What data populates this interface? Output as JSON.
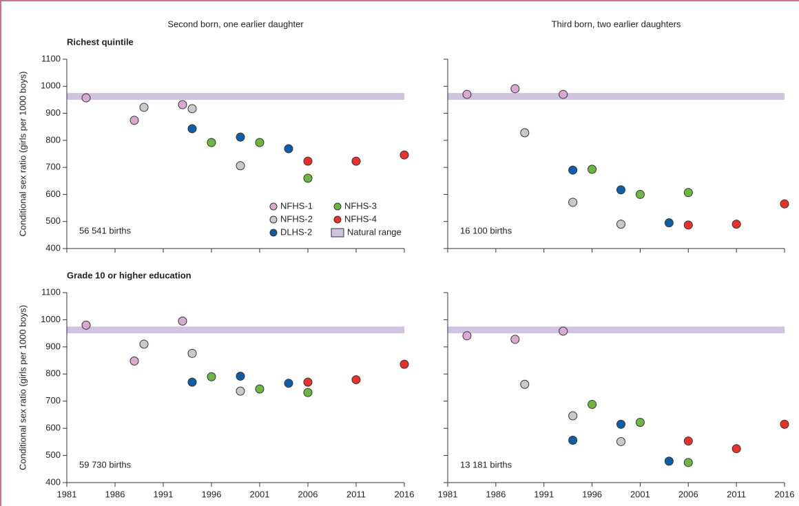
{
  "chart_data": [
    {
      "type": "scatter",
      "title": "Second born, one earlier daughter",
      "subtitle": "Richest quintile",
      "ylabel": "Conditional sex ratio (girls per 1000 boys)",
      "annotation": "56 541 births",
      "legend": "center-right",
      "xlim": [
        1981,
        2016
      ],
      "ylim": [
        400,
        1100
      ],
      "xticks": [
        1981,
        1986,
        1991,
        1996,
        2001,
        2006,
        2011,
        2016
      ],
      "yticks": [
        400,
        500,
        600,
        700,
        800,
        900,
        1000,
        1100
      ],
      "natural_range": {
        "name": "Natural range",
        "color": "#cfc3df",
        "values": [
          950,
          975
        ]
      },
      "series": [
        {
          "name": "NFHS-1",
          "color": "#d9a9d1",
          "x": [
            1983,
            1988,
            1993
          ],
          "values": [
            957,
            874,
            932
          ]
        },
        {
          "name": "NFHS-2",
          "color": "#c8c9cb",
          "x": [
            1989,
            1994,
            1999
          ],
          "values": [
            922,
            917,
            706
          ]
        },
        {
          "name": "DLHS-2",
          "color": "#0f5ea8",
          "x": [
            1994,
            1999,
            2004
          ],
          "values": [
            843,
            812,
            769
          ]
        },
        {
          "name": "NFHS-3",
          "color": "#6ab842",
          "x": [
            1996,
            2001,
            2006
          ],
          "values": [
            792,
            792,
            660
          ]
        },
        {
          "name": "NFHS-4",
          "color": "#e8312a",
          "x": [
            2006,
            2011,
            2016
          ],
          "values": [
            723,
            723,
            746
          ]
        }
      ]
    },
    {
      "type": "scatter",
      "title": "Third born, two earlier daughters",
      "annotation": "16 100 births",
      "xlim": [
        1981,
        2016
      ],
      "ylim": [
        400,
        1100
      ],
      "xticks": [
        1981,
        1986,
        1991,
        1996,
        2001,
        2006,
        2011,
        2016
      ],
      "yticks": [
        400,
        500,
        600,
        700,
        800,
        900,
        1000,
        1100
      ],
      "natural_range": {
        "color": "#cfc3df",
        "values": [
          950,
          975
        ]
      },
      "series": [
        {
          "color": "#d9a9d1",
          "x": [
            1983,
            1988,
            1993
          ],
          "values": [
            970,
            991,
            970
          ]
        },
        {
          "color": "#c8c9cb",
          "x": [
            1989,
            1994,
            1999
          ],
          "values": [
            828,
            571,
            490
          ]
        },
        {
          "color": "#0f5ea8",
          "x": [
            1994,
            1999,
            2004
          ],
          "values": [
            690,
            617,
            495
          ]
        },
        {
          "color": "#6ab842",
          "x": [
            1996,
            2001,
            2006
          ],
          "values": [
            693,
            600,
            607
          ]
        },
        {
          "color": "#e8312a",
          "x": [
            2006,
            2011,
            2016
          ],
          "values": [
            487,
            490,
            565
          ]
        }
      ]
    },
    {
      "type": "scatter",
      "subtitle": "Grade 10 or higher education",
      "ylabel": "Conditional sex ratio (girls per 1000 boys)",
      "annotation": "59 730 births",
      "xlim": [
        1981,
        2016
      ],
      "ylim": [
        400,
        1100
      ],
      "xticks": [
        1981,
        1986,
        1991,
        1996,
        2001,
        2006,
        2011,
        2016
      ],
      "yticks": [
        400,
        500,
        600,
        700,
        800,
        900,
        1000,
        1100
      ],
      "natural_range": {
        "color": "#cfc3df",
        "values": [
          950,
          975
        ]
      },
      "series": [
        {
          "color": "#d9a9d1",
          "x": [
            1983,
            1988,
            1993
          ],
          "values": [
            980,
            848,
            995
          ]
        },
        {
          "color": "#c8c9cb",
          "x": [
            1989,
            1994,
            1999
          ],
          "values": [
            910,
            876,
            737
          ]
        },
        {
          "color": "#0f5ea8",
          "x": [
            1994,
            1999,
            2004
          ],
          "values": [
            770,
            792,
            766
          ]
        },
        {
          "color": "#6ab842",
          "x": [
            1996,
            2001,
            2006
          ],
          "values": [
            790,
            745,
            732
          ]
        },
        {
          "color": "#e8312a",
          "x": [
            2006,
            2011,
            2016
          ],
          "values": [
            770,
            779,
            836
          ]
        }
      ]
    },
    {
      "type": "scatter",
      "annotation": "13 181 births",
      "xlim": [
        1981,
        2016
      ],
      "ylim": [
        400,
        1100
      ],
      "xticks": [
        1981,
        1986,
        1991,
        1996,
        2001,
        2006,
        2011,
        2016
      ],
      "yticks": [
        400,
        500,
        600,
        700,
        800,
        900,
        1000,
        1100
      ],
      "natural_range": {
        "color": "#cfc3df",
        "values": [
          950,
          975
        ]
      },
      "series": [
        {
          "color": "#d9a9d1",
          "x": [
            1983,
            1988,
            1993
          ],
          "values": [
            941,
            928,
            958
          ]
        },
        {
          "color": "#c8c9cb",
          "x": [
            1989,
            1994,
            1999
          ],
          "values": [
            762,
            646,
            551
          ]
        },
        {
          "color": "#0f5ea8",
          "x": [
            1994,
            1999,
            2004
          ],
          "values": [
            556,
            615,
            479
          ]
        },
        {
          "color": "#6ab842",
          "x": [
            1996,
            2001,
            2006
          ],
          "values": [
            688,
            622,
            474
          ]
        },
        {
          "color": "#e8312a",
          "x": [
            2006,
            2011,
            2016
          ],
          "values": [
            553,
            525,
            615
          ]
        }
      ]
    }
  ]
}
